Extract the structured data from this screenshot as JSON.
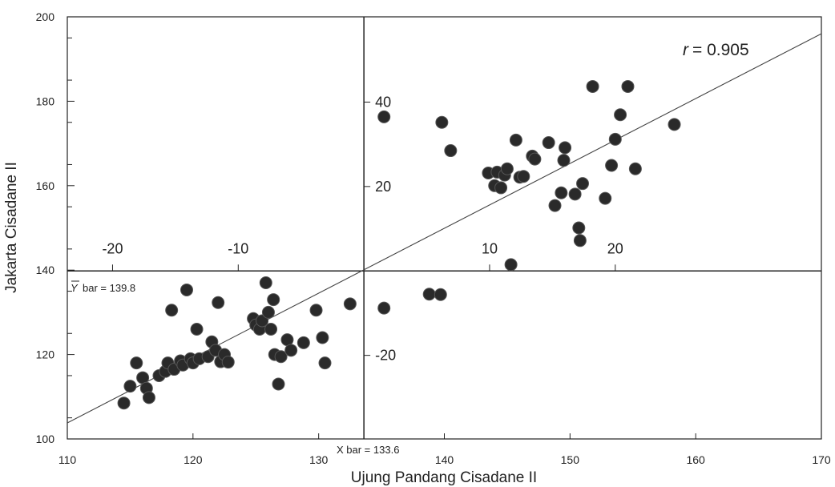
{
  "chart_data": {
    "type": "scatter",
    "xlabel": "Ujung Pandang Cisadane II",
    "ylabel": "Jakarta Cisadane II",
    "xlim": [
      110,
      170
    ],
    "ylim": [
      100,
      200
    ],
    "xticks": [
      110,
      120,
      130,
      140,
      150,
      160,
      170
    ],
    "yticks": [
      100,
      120,
      140,
      160,
      180,
      200
    ],
    "x_mean": 133.6,
    "y_mean": 139.8,
    "x_mean_label": "X bar = 133.6",
    "y_mean_label": "bar = 139.8",
    "y_mean_symbol": "Y",
    "r_symbol": "r",
    "r_text": "= 0.905",
    "regression_line": {
      "x": [
        110,
        170
      ],
      "y": [
        103.8,
        196.0
      ]
    },
    "deviation_x_ticks": [
      -20,
      -10,
      10,
      20
    ],
    "deviation_y_ticks": [
      40,
      20,
      -20
    ],
    "points": {
      "x": [
        114.5,
        115.0,
        115.5,
        116.0,
        116.3,
        116.5,
        117.3,
        117.8,
        118.0,
        118.3,
        118.5,
        119.0,
        119.2,
        119.5,
        119.8,
        120.0,
        120.3,
        120.5,
        121.2,
        121.5,
        121.8,
        122.0,
        122.2,
        122.5,
        122.8,
        124.8,
        125.0,
        125.3,
        125.5,
        125.8,
        126.0,
        126.2,
        126.4,
        126.5,
        126.8,
        127.0,
        127.5,
        127.8,
        128.8,
        129.8,
        130.3,
        130.5,
        132.5,
        135.2,
        135.2,
        138.8,
        139.7,
        139.8,
        140.5,
        143.5,
        144.0,
        144.2,
        144.5,
        144.8,
        145.0,
        145.3,
        145.7,
        146.0,
        146.3,
        147.0,
        147.2,
        148.3,
        148.8,
        149.3,
        149.5,
        149.6,
        150.4,
        150.7,
        150.8,
        151.0,
        151.8,
        152.8,
        153.3,
        153.6,
        154.0,
        154.6,
        155.2,
        158.3
      ],
      "y": [
        108.5,
        112.5,
        118.0,
        114.5,
        112.0,
        109.8,
        115.0,
        116.0,
        118.0,
        130.5,
        116.5,
        118.5,
        117.5,
        135.3,
        119.0,
        118.0,
        126.0,
        119.0,
        119.5,
        123.0,
        121.0,
        132.3,
        118.3,
        120.0,
        118.2,
        128.5,
        127.0,
        126.0,
        128.0,
        137.0,
        130.0,
        126.0,
        133.0,
        120.0,
        113.0,
        119.5,
        123.5,
        121.0,
        122.8,
        130.5,
        124.0,
        118.0,
        132.0,
        131.0,
        176.3,
        134.3,
        134.2,
        175.0,
        168.3,
        163.0,
        160.0,
        163.2,
        159.5,
        162.5,
        164.0,
        141.3,
        170.8,
        162.0,
        162.2,
        167.0,
        166.3,
        170.2,
        155.3,
        158.3,
        166.0,
        169.0,
        158.0,
        150.0,
        147.0,
        160.5,
        183.5,
        157.0,
        164.8,
        171.0,
        176.8,
        183.5,
        164.0,
        174.5
      ]
    }
  }
}
